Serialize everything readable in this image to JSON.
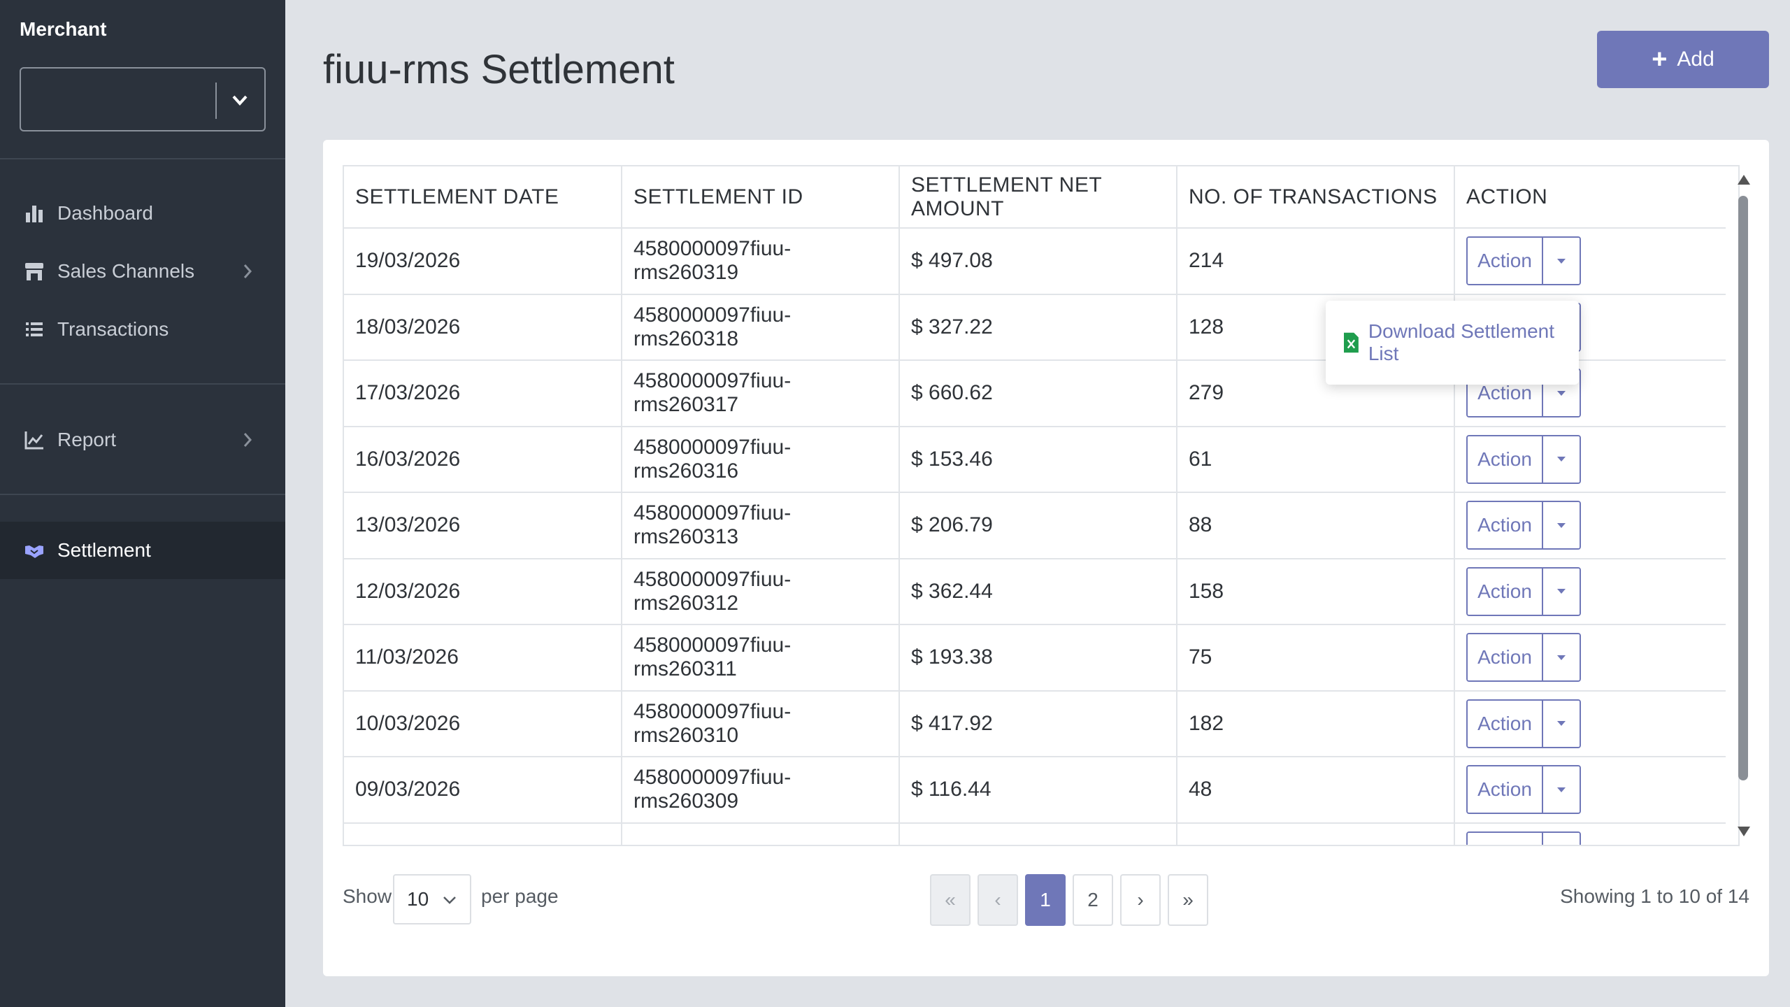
{
  "sidebar": {
    "merchant_label": "Merchant",
    "merchant_value": "",
    "items": [
      {
        "label": "Dashboard",
        "icon": "bar-chart-icon"
      },
      {
        "label": "Sales Channels",
        "icon": "store-icon"
      },
      {
        "label": "Transactions",
        "icon": "list-icon"
      },
      {
        "label": "Report",
        "icon": "line-chart-icon"
      },
      {
        "label": "Settlement",
        "icon": "handshake-icon",
        "active": true
      }
    ]
  },
  "header": {
    "title": "fiuu-rms Settlement",
    "add_label": "Add"
  },
  "table": {
    "columns": [
      "SETTLEMENT DATE",
      "SETTLEMENT ID",
      "SETTLEMENT NET AMOUNT",
      "NO. OF TRANSACTIONS",
      "ACTION"
    ],
    "action_label": "Action",
    "rows": [
      {
        "date": "19/03/2026",
        "id": "4580000097fiuu-rms260319",
        "amount": "$ 497.08",
        "count": "214"
      },
      {
        "date": "18/03/2026",
        "id": "4580000097fiuu-rms260318",
        "amount": "$ 327.22",
        "count": "128"
      },
      {
        "date": "17/03/2026",
        "id": "4580000097fiuu-rms260317",
        "amount": "$ 660.62",
        "count": "279"
      },
      {
        "date": "16/03/2026",
        "id": "4580000097fiuu-rms260316",
        "amount": "$ 153.46",
        "count": "61"
      },
      {
        "date": "13/03/2026",
        "id": "4580000097fiuu-rms260313",
        "amount": "$ 206.79",
        "count": "88"
      },
      {
        "date": "12/03/2026",
        "id": "4580000097fiuu-rms260312",
        "amount": "$ 362.44",
        "count": "158"
      },
      {
        "date": "11/03/2026",
        "id": "4580000097fiuu-rms260311",
        "amount": "$ 193.38",
        "count": "75"
      },
      {
        "date": "10/03/2026",
        "id": "4580000097fiuu-rms260310",
        "amount": "$ 417.92",
        "count": "182"
      },
      {
        "date": "09/03/2026",
        "id": "4580000097fiuu-rms260309",
        "amount": "$ 116.44",
        "count": "48"
      },
      {
        "date": "",
        "id": "",
        "amount": "",
        "count": ""
      }
    ]
  },
  "dropdown": {
    "download_label": "Download Settlement List"
  },
  "footer": {
    "show_label": "Show",
    "per_page_value": "10",
    "per_page_label": "per page",
    "pages": [
      "«",
      "‹",
      "1",
      "2",
      "›",
      "»"
    ],
    "showing_text": "Showing 1 to 10 of 14"
  },
  "colors": {
    "accent": "#6f77b8",
    "sidebar_bg": "#2b323c",
    "excel_green": "#1f9d4d"
  }
}
